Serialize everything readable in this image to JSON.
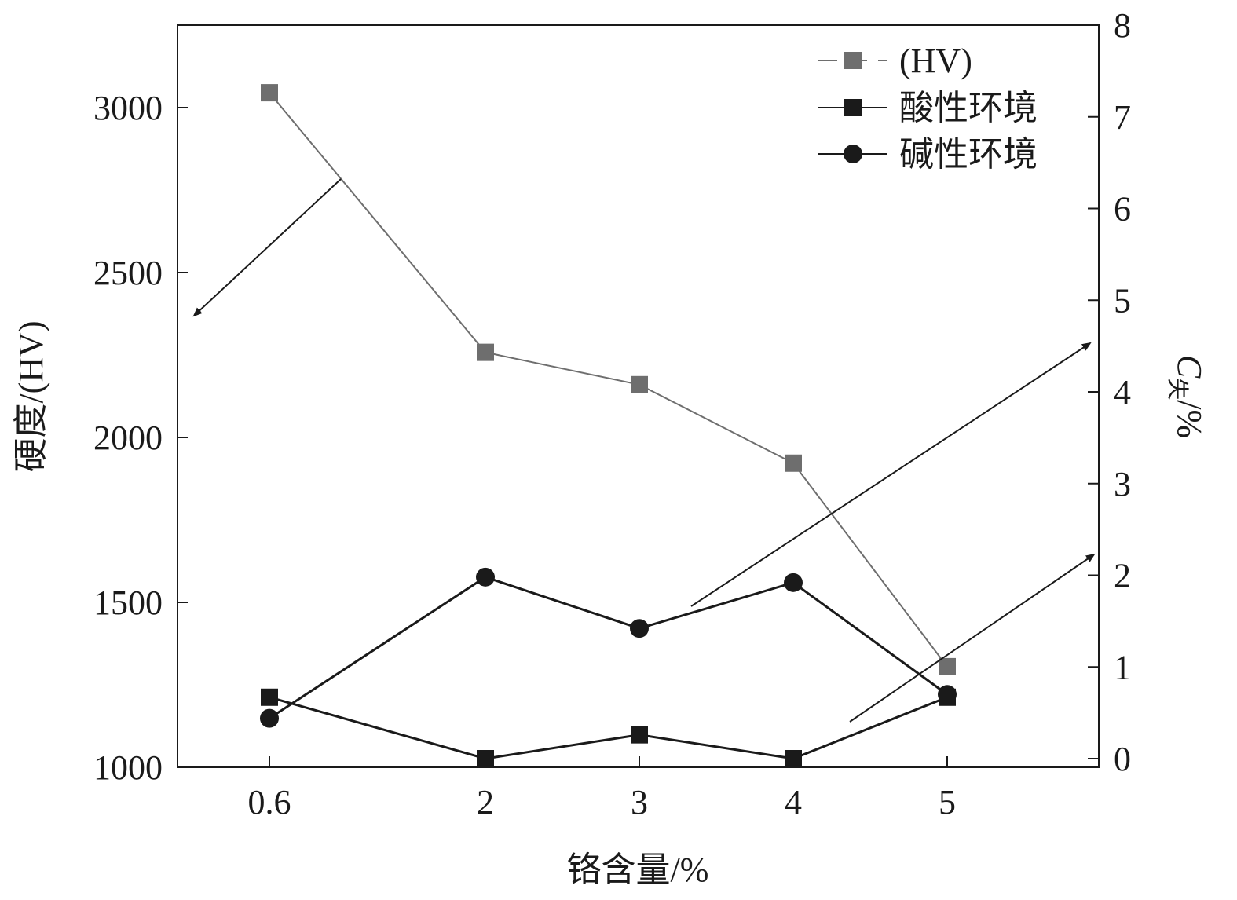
{
  "chart_data": {
    "type": "line",
    "x_values": [
      0.6,
      2,
      3,
      4,
      5
    ],
    "x_tick_labels": [
      "0.6",
      "2",
      "3",
      "4",
      "5"
    ],
    "xlabel": "铬含量/%",
    "ylabel_left": "硬度/(HV)",
    "ylabel_right_main": "C",
    "ylabel_right_sub": "失",
    "ylabel_right_unit": "/%",
    "ylim_left": [
      1000,
      3250
    ],
    "ylim_right": [
      0,
      8
    ],
    "yticks_left": [
      "1000",
      "1500",
      "2000",
      "2500",
      "3000"
    ],
    "yticks_right": [
      "0",
      "1",
      "2",
      "3",
      "4",
      "5",
      "6",
      "7",
      "8"
    ],
    "series": [
      {
        "name": "(HV)",
        "axis": "left",
        "marker": "square",
        "color": "#6e6e6e",
        "line_style": "dashed-legend",
        "values": [
          3045,
          2258,
          2160,
          1922,
          1305
        ]
      },
      {
        "name": "酸性环境",
        "axis": "right",
        "marker": "square",
        "color": "#1a1a1a",
        "values": [
          0.67,
          0.0,
          0.26,
          0.0,
          0.67
        ]
      },
      {
        "name": "碱性环境",
        "axis": "right",
        "marker": "circle",
        "color": "#1a1a1a",
        "values": [
          0.44,
          1.98,
          1.42,
          1.92,
          0.7
        ]
      }
    ],
    "legend_position": "top-right",
    "grid": false,
    "annotations": [
      {
        "type": "arrow",
        "meaning": "HV series refers to left axis"
      },
      {
        "type": "arrow",
        "meaning": "碱性环境 series refers to right axis"
      },
      {
        "type": "arrow",
        "meaning": "酸性环境 series refers to right axis"
      }
    ]
  }
}
